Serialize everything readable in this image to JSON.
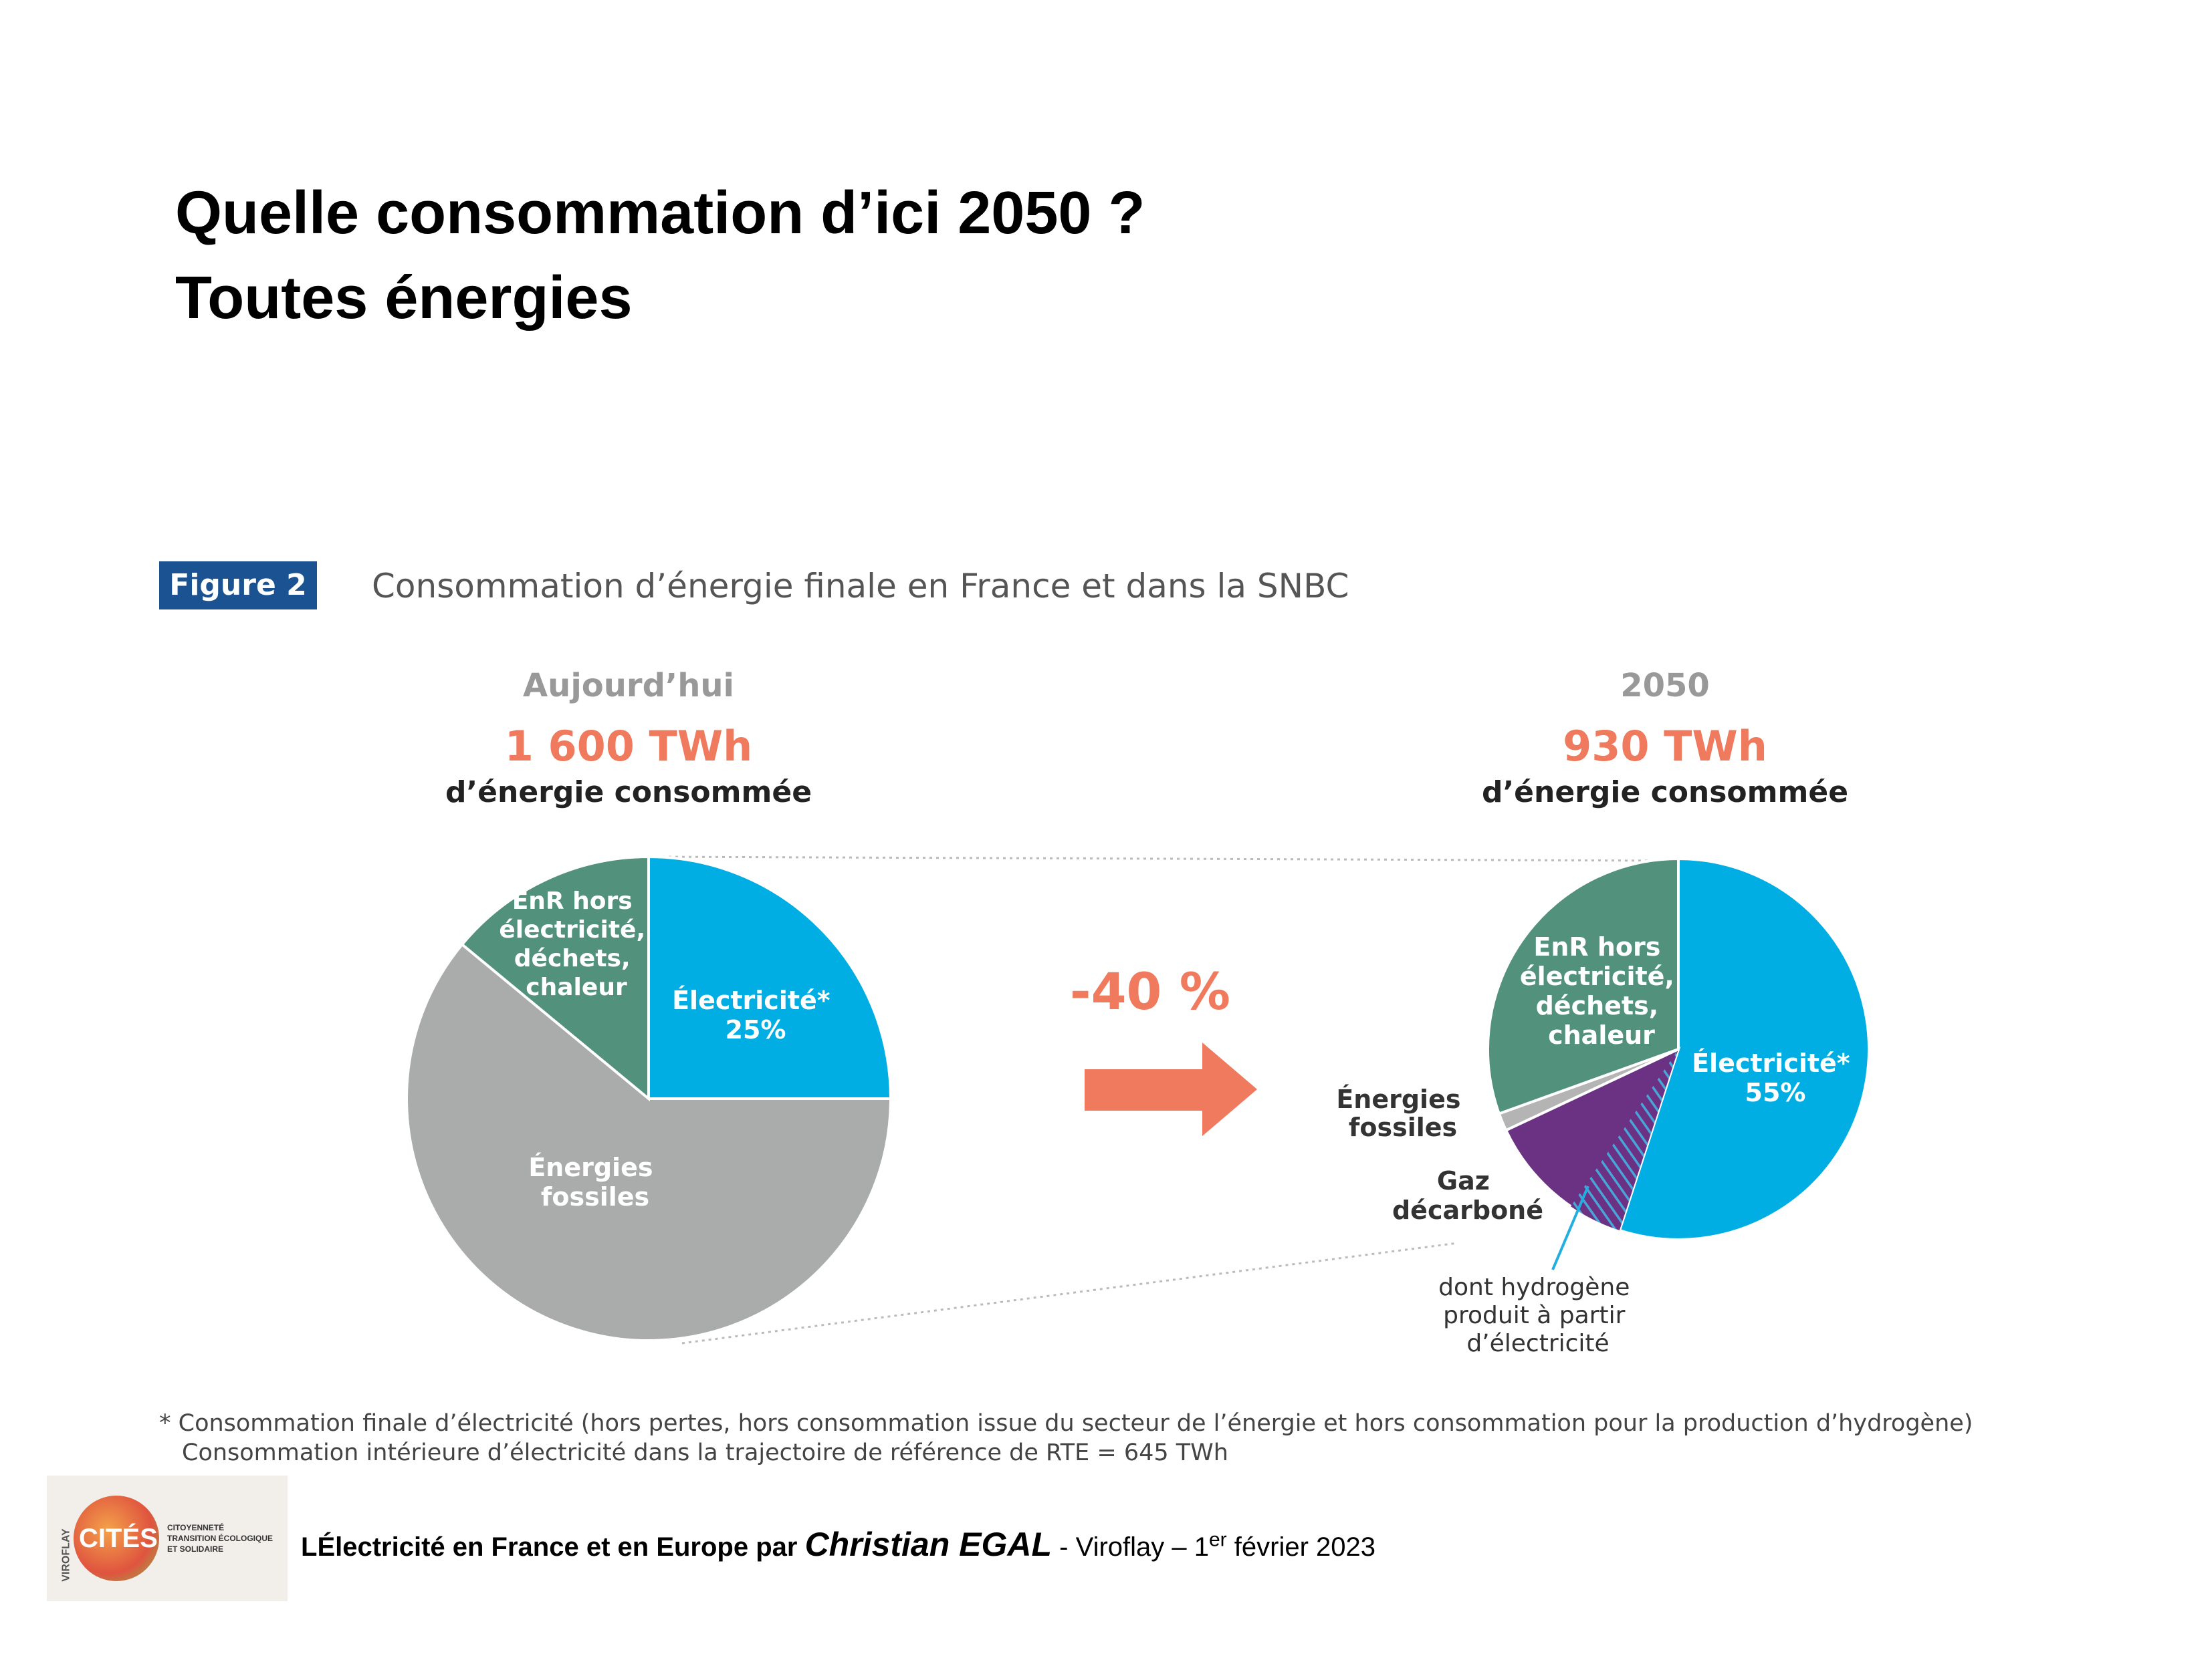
{
  "slide": {
    "title_line1": "Quelle consommation d’ici 2050 ?",
    "title_line2": "Toutes énergies"
  },
  "figure": {
    "badge": "Figure 2",
    "caption": "Consommation d’énergie finale en France et dans la SNBC",
    "arrow_label": "-40 %",
    "footnote_line1": "* Consommation finale d’électricité (hors pertes, hors consommation issue du secteur de l’énergie et hors consommation pour la production d’hydrogène)",
    "footnote_line2": "Consommation intérieure d’électricité dans la trajectoire de référence de RTE = 645 TWh"
  },
  "chart_data": [
    {
      "type": "pie",
      "title": "Aujourd’hui",
      "total": "1 600 TWh",
      "subtitle": "d’énergie consommée",
      "slices": [
        {
          "label": "Électricité*",
          "value_label": "25%",
          "value": 25,
          "color": "#00aee3"
        },
        {
          "label": "Énergies fossiles",
          "value_label": "",
          "value": 61,
          "color": "#aaacab"
        },
        {
          "label": "EnR hors électricité, déchets, chaleur",
          "value_label": "",
          "value": 14,
          "color": "#52927d"
        }
      ]
    },
    {
      "type": "pie",
      "title": "2050",
      "total": "930 TWh",
      "subtitle": "d’énergie consommée",
      "slices": [
        {
          "label": "Électricité*",
          "value_label": "55%",
          "value": 55,
          "color": "#00aee3"
        },
        {
          "label": "Gaz décarboné",
          "value_label": "",
          "value": 13,
          "color": "#6b3283"
        },
        {
          "label": "Énergies fossiles",
          "value_label": "",
          "value": 1.5,
          "color": "#b4b4b4"
        },
        {
          "label": "EnR hors électricité, déchets, chaleur",
          "value_label": "",
          "value": 30.5,
          "color": "#52927d"
        }
      ],
      "annotation": "dont hydrogène produit à partir d’électricité"
    }
  ],
  "footer": {
    "prefix": "L",
    "text_bold": "Électricité en France et en Europe par ",
    "author": "Christian EGAL",
    "place": " - Viroflay – 1",
    "sup": "er",
    "date": " février 2023"
  },
  "logo": {
    "name": "CITÉS",
    "vertical": "VIROFLAY",
    "tag1": "CITOYENNETÉ",
    "tag2": "TRANSITION ÉCOLOGIQUE",
    "tag3": "ET SOLIDAIRE"
  }
}
